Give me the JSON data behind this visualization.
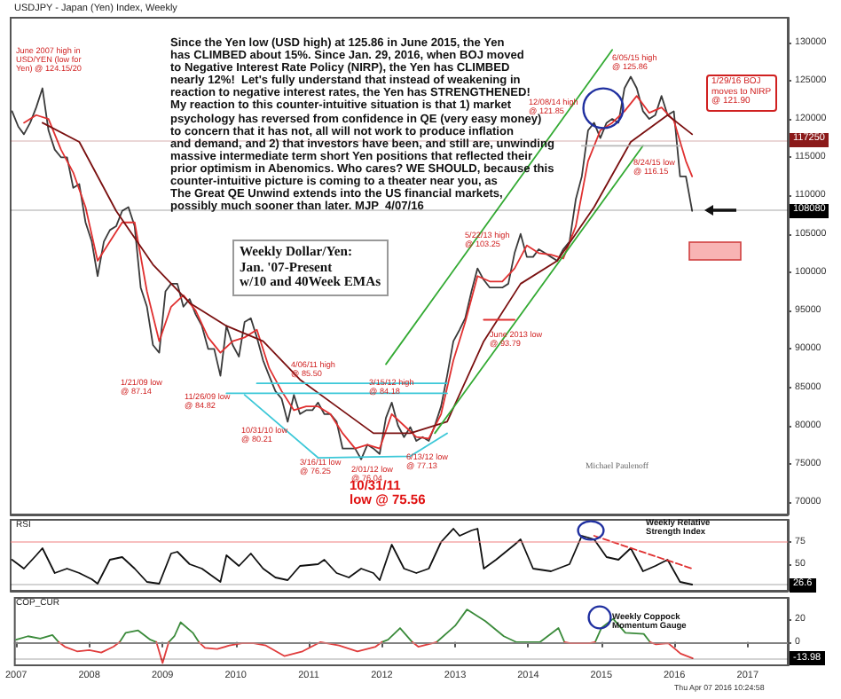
{
  "chart_data": [
    {
      "type": "line",
      "title": "USDJPY - Japan (Yen) Index, Weekly",
      "marker": "none",
      "tick_labels": "y",
      "xlim": [
        "2006-12-25",
        "2017-07-20"
      ],
      "xticks": [
        "2007",
        "2008",
        "2009",
        "2010",
        "2011",
        "2012",
        "2013",
        "2014",
        "2015",
        "2016",
        "2017"
      ],
      "ylim": [
        68400,
        133200
      ],
      "yticks": [
        70000,
        75000,
        80000,
        85000,
        90000,
        95000,
        100000,
        105000,
        110000,
        115000,
        120000,
        125000,
        130000
      ],
      "series": [
        {
          "color": "#3a3a3a",
          "x": [
            "2007-01",
            "2007-02",
            "2007-03",
            "2007-04",
            "2007-05",
            "2007-06",
            "2007-07",
            "2007-08",
            "2007-09",
            "2007-10",
            "2007-11",
            "2007-12",
            "2008-01",
            "2008-02",
            "2008-03",
            "2008-04",
            "2008-05",
            "2008-06",
            "2008-07",
            "2008-08",
            "2008-09",
            "2008-10",
            "2008-11",
            "2008-12",
            "2009-01",
            "2009-02",
            "2009-03",
            "2009-04",
            "2009-05",
            "2009-06",
            "2009-07",
            "2009-08",
            "2009-09",
            "2009-10",
            "2009-11",
            "2009-12",
            "2010-01",
            "2010-02",
            "2010-03",
            "2010-04",
            "2010-05",
            "2010-06",
            "2010-07",
            "2010-08",
            "2010-09",
            "2010-10",
            "2010-11",
            "2010-12",
            "2011-01",
            "2011-02",
            "2011-03",
            "2011-04",
            "2011-05",
            "2011-06",
            "2011-07",
            "2011-08",
            "2011-09",
            "2011-10",
            "2011-11",
            "2011-12",
            "2012-01",
            "2012-02",
            "2012-03",
            "2012-04",
            "2012-05",
            "2012-06",
            "2012-07",
            "2012-08",
            "2012-09",
            "2012-10",
            "2012-11",
            "2012-12",
            "2013-01",
            "2013-02",
            "2013-03",
            "2013-04",
            "2013-05",
            "2013-06",
            "2013-07",
            "2013-08",
            "2013-09",
            "2013-10",
            "2013-11",
            "2013-12",
            "2014-01",
            "2014-02",
            "2014-03",
            "2014-04",
            "2014-05",
            "2014-06",
            "2014-07",
            "2014-08",
            "2014-09",
            "2014-10",
            "2014-11",
            "2014-12",
            "2015-01",
            "2015-02",
            "2015-03",
            "2015-04",
            "2015-05",
            "2015-06",
            "2015-07",
            "2015-08",
            "2015-09",
            "2015-10",
            "2015-11",
            "2015-12",
            "2016-01",
            "2016-02",
            "2016-03",
            "2016-04"
          ],
          "values": [
            121000,
            119000,
            118000,
            119500,
            121500,
            124000,
            118500,
            116000,
            115000,
            115000,
            111000,
            111500,
            106500,
            104000,
            99500,
            104000,
            105500,
            106000,
            108000,
            108500,
            106000,
            98000,
            95500,
            90500,
            89500,
            97500,
            98500,
            98500,
            95500,
            96500,
            94500,
            93000,
            90000,
            90000,
            86500,
            93000,
            90500,
            89000,
            93500,
            94000,
            91500,
            88500,
            86500,
            84500,
            83500,
            80500,
            84000,
            81500,
            82000,
            82000,
            83000,
            81500,
            81500,
            80500,
            77000,
            77000,
            77000,
            75600,
            77500,
            77000,
            76300,
            81000,
            83000,
            80000,
            78500,
            79800,
            78000,
            78500,
            78000,
            80000,
            82500,
            86500,
            91000,
            92500,
            94000,
            97500,
            100500,
            99000,
            98000,
            98000,
            98000,
            98500,
            102500,
            105000,
            102000,
            102000,
            103000,
            102500,
            102000,
            101500,
            103000,
            104000,
            109500,
            112500,
            118500,
            119500,
            117500,
            119500,
            120000,
            119500,
            124000,
            125500,
            124000,
            121000,
            120000,
            120500,
            123000,
            120500,
            121000,
            112500,
            112500,
            108000
          ]
        },
        {
          "color": "#e03030",
          "x": [
            "2007-03",
            "2007-05",
            "2007-07",
            "2007-09",
            "2007-11",
            "2008-01",
            "2008-03",
            "2008-05",
            "2008-07",
            "2008-09",
            "2008-11",
            "2009-01",
            "2009-03",
            "2009-05",
            "2009-07",
            "2009-09",
            "2009-11",
            "2010-01",
            "2010-03",
            "2010-05",
            "2010-07",
            "2010-09",
            "2010-11",
            "2011-01",
            "2011-03",
            "2011-05",
            "2011-07",
            "2011-09",
            "2011-11",
            "2012-01",
            "2012-03",
            "2012-05",
            "2012-07",
            "2012-09",
            "2012-11",
            "2013-01",
            "2013-03",
            "2013-05",
            "2013-07",
            "2013-09",
            "2013-11",
            "2014-01",
            "2014-03",
            "2014-05",
            "2014-07",
            "2014-09",
            "2014-11",
            "2015-01",
            "2015-03",
            "2015-05",
            "2015-07",
            "2015-09",
            "2015-11",
            "2016-01",
            "2016-03",
            "2016-04"
          ],
          "values": [
            119500,
            120500,
            120000,
            116000,
            113000,
            108500,
            101500,
            104000,
            106500,
            106500,
            97500,
            91000,
            95500,
            97000,
            95000,
            91500,
            89500,
            91000,
            91500,
            92500,
            87500,
            84500,
            82000,
            82500,
            82500,
            81500,
            79000,
            77000,
            77500,
            77000,
            81500,
            80000,
            78500,
            78300,
            81500,
            88500,
            93500,
            99500,
            98800,
            98800,
            100500,
            103500,
            102500,
            102300,
            101800,
            106000,
            114500,
            118500,
            119500,
            121000,
            123000,
            120800,
            121500,
            119800,
            114500,
            112500
          ]
        },
        {
          "color": "#7a1010",
          "x": [
            "2007-06",
            "2007-12",
            "2008-06",
            "2008-12",
            "2009-06",
            "2009-12",
            "2010-06",
            "2010-12",
            "2011-06",
            "2011-12",
            "2012-06",
            "2012-12",
            "2013-06",
            "2013-12",
            "2014-06",
            "2014-12",
            "2015-06",
            "2015-12",
            "2016-04"
          ],
          "values": [
            119500,
            117000,
            108000,
            101000,
            96000,
            93000,
            91000,
            86000,
            82500,
            79000,
            79000,
            80500,
            91000,
            98500,
            101500,
            108500,
            117000,
            120500,
            118000
          ]
        },
        {
          "color": "#33aa33",
          "x": [
            "2012-02",
            "2015-03"
          ],
          "values": [
            88000,
            129000
          ]
        },
        {
          "color": "#33aa33",
          "x": [
            "2012-10",
            "2015-08"
          ],
          "values": [
            79000,
            116500
          ]
        },
        {
          "color": "#3cc8d8",
          "x": [
            "2010-05",
            "2012-12"
          ],
          "values": [
            85500,
            85500
          ]
        },
        {
          "color": "#3cc8d8",
          "x": [
            "2009-12",
            "2012-12"
          ],
          "values": [
            84200,
            84200
          ]
        },
        {
          "color": "#3cc8d8",
          "x": [
            "2010-03",
            "2011-03",
            "2012-06",
            "2012-12"
          ],
          "values": [
            84000,
            75800,
            76000,
            79000
          ]
        },
        {
          "color": "#e03030",
          "x": [
            "2013-06",
            "2013-11"
          ],
          "values": [
            93800,
            93800
          ]
        },
        {
          "color": "#b8b8b8",
          "x": [
            "2014-10",
            "2016-02"
          ],
          "values": [
            116500,
            116500
          ]
        }
      ],
      "ref_lines": [
        {
          "axis": "y",
          "value": 117250,
          "label": "117250",
          "color": "#8b1a1a"
        },
        {
          "axis": "y",
          "value": 108080,
          "label": "108080",
          "color": "#000000"
        }
      ],
      "annotations": [
        "June 2007 high in\nUSD/YEN (low for\nYen) @ 124.15/20",
        "Since the Yen low (USD high) at 125.86 in June 2015, the Yen\nhas CLIMBED about 15%. Since Jan. 29, 2016, when BOJ moved\nto Negative Interest Rate Policy (NIRP), the Yen has CLIMBED\nnearly 12%!  Let's fully understand that instead of weakening in\nreaction to negative interest rates, the Yen has STRENGTHENED!\nMy reaction to this counter-intuitive situation is that 1) market\npsychology has reversed from confidence in QE (very easy money)\nto concern that it has not, all will not work to produce inflation\nand demand, and 2) that investors have been, and still are, unwinding\nmassive intermediate term short Yen positions that reflected their\nprior optimism in Abenomics. Who cares? WE SHOULD, because this\ncounter-intuitive picture is coming to a theater near you, as\nThe Great QE Unwind extends into the US financial markets,\npossibly much sooner than later. MJP  4/07/16",
        "12/08/14 high\n@ 121.85",
        "6/05/15 high\n@ 125.86",
        "1/29/16 BOJ\nmoves to NIRP\n@ 121.90",
        "8/24/15 low\n@ 116.15",
        "5/22/13 high\n@ 103.25",
        "June 2013 low\n@ 93.79",
        "1/21/09 low\n@ 87.14",
        "4/06/11 high\n@ 85.50",
        "11/26/09 low\n@ 84.82",
        "3/15/12 high\n@ 84.18",
        "10/31/10 low\n@ 80.21",
        "3/16/11 low\n@ 76.25",
        "2/01/12 low\n@ 76.04",
        "6/13/12 low\n@ 77.13",
        "10/31/11\nlow @ 75.56",
        "Weekly Dollar/Yen:\nJan. '07-Present\nw/10 and 40Week EMAs",
        "Michael Paulenoff"
      ]
    },
    {
      "type": "line",
      "ylabel": "RSI",
      "marker": "none",
      "tick_labels": "y",
      "xlim": [
        "2006-12-25",
        "2017-07-20"
      ],
      "xticks": [
        "2007",
        "2008",
        "2009",
        "2010",
        "2011",
        "2012",
        "2013",
        "2014",
        "2015",
        "2016",
        "2017"
      ],
      "ylim": [
        20,
        100
      ],
      "yticks": [
        50,
        75
      ],
      "series": [
        {
          "color": "#111111",
          "x": [
            "2007-01",
            "2007-03",
            "2007-05",
            "2007-06",
            "2007-08",
            "2007-10",
            "2007-12",
            "2008-02",
            "2008-03",
            "2008-05",
            "2008-07",
            "2008-09",
            "2008-11",
            "2009-01",
            "2009-03",
            "2009-04",
            "2009-06",
            "2009-08",
            "2009-11",
            "2009-12",
            "2010-02",
            "2010-04",
            "2010-06",
            "2010-08",
            "2010-10",
            "2010-12",
            "2011-03",
            "2011-04",
            "2011-06",
            "2011-08",
            "2011-10",
            "2011-12",
            "2012-01",
            "2012-03",
            "2012-05",
            "2012-07",
            "2012-09",
            "2012-11",
            "2013-01",
            "2013-02",
            "2013-04",
            "2013-05",
            "2013-06",
            "2013-08",
            "2013-11",
            "2013-12",
            "2014-02",
            "2014-05",
            "2014-08",
            "2014-10",
            "2014-12",
            "2015-02",
            "2015-04",
            "2015-06",
            "2015-08",
            "2015-10",
            "2015-12",
            "2016-02",
            "2016-04"
          ],
          "values": [
            55,
            45,
            60,
            68,
            40,
            45,
            40,
            33,
            28,
            55,
            58,
            45,
            30,
            28,
            62,
            64,
            50,
            45,
            30,
            60,
            48,
            62,
            45,
            35,
            32,
            48,
            50,
            55,
            40,
            35,
            45,
            40,
            32,
            72,
            45,
            40,
            45,
            75,
            90,
            82,
            88,
            90,
            45,
            55,
            72,
            78,
            45,
            42,
            50,
            82,
            78,
            58,
            55,
            68,
            42,
            48,
            55,
            30,
            27
          ]
        },
        {
          "color": "#e03030",
          "line_style": "dashed",
          "x": [
            "2014-12",
            "2016-04"
          ],
          "values": [
            82,
            45
          ]
        }
      ],
      "ref_lines": [
        {
          "axis": "y",
          "value": 75,
          "color": "#f08080"
        },
        {
          "axis": "y",
          "value": 26.6,
          "label": "26.6",
          "color": "#000000"
        }
      ],
      "annotations": [
        "Weekly Relative\nStrength Index"
      ]
    },
    {
      "type": "line",
      "ylabel": "COP_CUR",
      "marker": "none",
      "xlim": [
        "2006-12-25",
        "2017-07-20"
      ],
      "xticks": [
        "2007",
        "2008",
        "2009",
        "2010",
        "2011",
        "2012",
        "2013",
        "2014",
        "2015",
        "2016",
        "2017"
      ],
      "ylim": [
        -20,
        38
      ],
      "yticks": [
        0,
        20
      ],
      "series": [
        {
          "color": "#3a8a3a",
          "x": [
            "2007-01",
            "2007-03",
            "2007-05",
            "2007-07",
            "2007-08",
            "2007-10",
            "2008-06",
            "2008-07",
            "2008-09",
            "2008-11",
            "2008-12",
            "2009-01",
            "2009-02",
            "2009-03",
            "2009-04",
            "2009-06",
            "2009-07",
            "2009-09",
            "2012-01",
            "2012-02",
            "2012-04",
            "2012-06",
            "2012-08",
            "2012-10",
            "2013-01",
            "2013-03",
            "2013-06",
            "2013-09",
            "2013-11",
            "2014-03",
            "2014-06",
            "2014-07",
            "2014-09",
            "2014-12",
            "2015-01",
            "2015-03",
            "2015-05",
            "2015-08",
            "2015-09"
          ],
          "values": [
            2,
            5,
            3,
            6,
            0,
            null,
            0,
            8,
            10,
            2,
            0,
            null,
            0,
            5,
            17,
            8,
            0,
            null,
            0,
            2,
            12,
            0,
            null,
            0,
            14,
            28,
            18,
            5,
            0,
            0,
            12,
            0,
            null,
            0,
            12,
            20,
            8,
            7,
            0
          ]
        },
        {
          "color": "#e03c3c",
          "x": [
            "2007-08",
            "2007-09",
            "2007-11",
            "2008-01",
            "2008-03",
            "2008-05",
            "2008-06",
            "2008-09",
            "2008-12",
            "2009-01",
            "2009-02",
            "2009-04",
            "2009-07",
            "2009-08",
            "2009-10",
            "2009-12",
            "2010-02",
            "2010-04",
            "2010-06",
            "2010-09",
            "2010-12",
            "2011-03",
            "2011-06",
            "2011-09",
            "2011-12",
            "2012-01",
            "2012-04",
            "2012-06",
            "2012-07",
            "2012-10",
            "2013-06",
            "2014-07",
            "2014-08",
            "2014-11",
            "2014-12",
            "2015-03",
            "2015-09",
            "2015-10",
            "2015-12",
            "2016-02",
            "2016-04"
          ],
          "values": [
            0,
            -4,
            -8,
            -7,
            -9,
            -4,
            0,
            null,
            0,
            -18,
            0,
            null,
            0,
            -5,
            -6,
            -3,
            -1,
            -1,
            -3,
            -12,
            -8,
            0,
            -3,
            -8,
            -4,
            0,
            null,
            0,
            -4,
            0,
            null,
            0,
            -1,
            -1,
            0,
            null,
            0,
            -2,
            -1,
            -10,
            -14
          ]
        }
      ],
      "ref_lines": [
        {
          "axis": "y",
          "value": 0,
          "color": "#b0b0b0"
        },
        {
          "axis": "y",
          "value": -13.98,
          "label": "-13.98",
          "color": "#000000"
        }
      ],
      "annotations": [
        "Weekly Coppock\nMomentum Gauge",
        "Thu Apr 07 2016 10:24:58"
      ]
    }
  ]
}
